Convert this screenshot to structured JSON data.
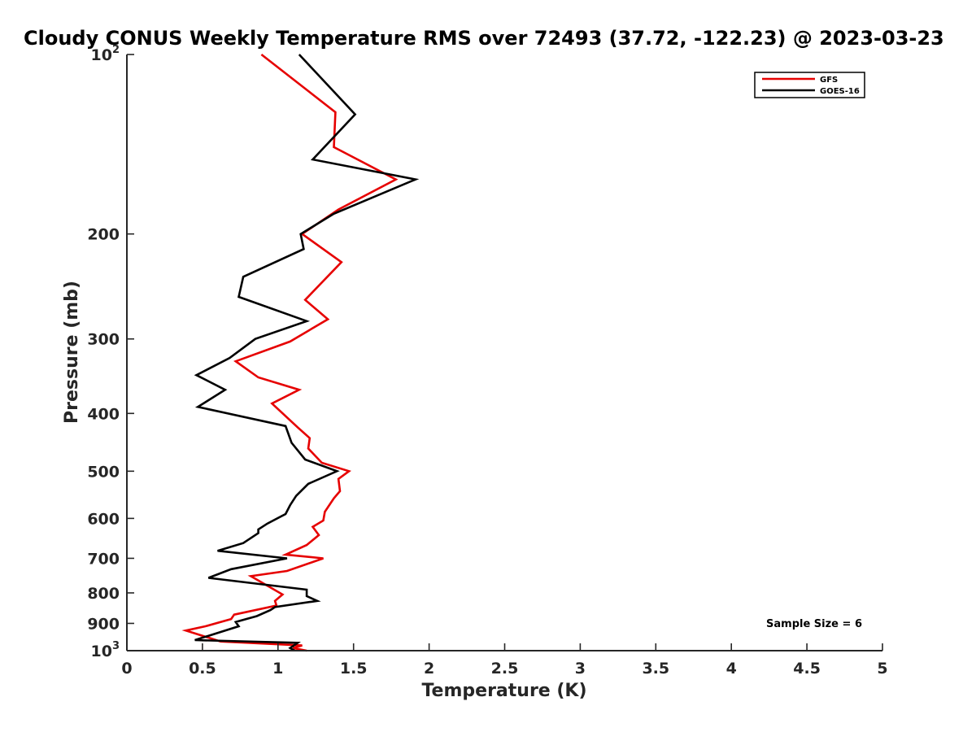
{
  "chart_data": {
    "type": "line",
    "title": "Cloudy CONUS Weekly Temperature RMS over 72493 (37.72, -122.23) @ 2023-03-23",
    "xlabel": "Temperature (K)",
    "ylabel": "Pressure (mb)",
    "xlim": [
      0,
      5
    ],
    "ylim": [
      100,
      1000
    ],
    "y_scale": "log",
    "y_reversed": true,
    "grid": false,
    "legend_position": "top-right",
    "x_ticks": [
      0,
      0.5,
      1,
      1.5,
      2,
      2.5,
      3,
      3.5,
      4,
      4.5,
      5
    ],
    "x_tick_labels": [
      "0",
      "0.5",
      "1",
      "1.5",
      "2",
      "2.5",
      "3",
      "3.5",
      "4",
      "4.5",
      "5"
    ],
    "y_ticks": [
      100,
      200,
      300,
      400,
      500,
      600,
      700,
      800,
      900,
      1000
    ],
    "y_tick_labels": [
      {
        "base": "10",
        "exp": "2"
      },
      {
        "base": "200",
        "exp": ""
      },
      {
        "base": "300",
        "exp": ""
      },
      {
        "base": "400",
        "exp": ""
      },
      {
        "base": "500",
        "exp": ""
      },
      {
        "base": "600",
        "exp": ""
      },
      {
        "base": "700",
        "exp": ""
      },
      {
        "base": "800",
        "exp": ""
      },
      {
        "base": "900",
        "exp": ""
      },
      {
        "base": "10",
        "exp": "3"
      }
    ],
    "series": [
      {
        "name": "GFS",
        "color": "#e60000",
        "points": [
          [
            0.89,
            100
          ],
          [
            1.38,
            125
          ],
          [
            1.37,
            143
          ],
          [
            1.78,
            162
          ],
          [
            1.4,
            182
          ],
          [
            1.16,
            200
          ],
          [
            1.42,
            223
          ],
          [
            1.18,
            258
          ],
          [
            1.33,
            278
          ],
          [
            1.08,
            303
          ],
          [
            0.72,
            327
          ],
          [
            0.87,
            348
          ],
          [
            1.14,
            365
          ],
          [
            0.96,
            385
          ],
          [
            1.13,
            422
          ],
          [
            1.21,
            440
          ],
          [
            1.2,
            458
          ],
          [
            1.29,
            484
          ],
          [
            1.47,
            500
          ],
          [
            1.4,
            515
          ],
          [
            1.41,
            540
          ],
          [
            1.37,
            555
          ],
          [
            1.31,
            585
          ],
          [
            1.3,
            605
          ],
          [
            1.23,
            620
          ],
          [
            1.27,
            640
          ],
          [
            1.19,
            665
          ],
          [
            1.05,
            690
          ],
          [
            1.3,
            700
          ],
          [
            1.06,
            735
          ],
          [
            0.82,
            750
          ],
          [
            1.03,
            805
          ],
          [
            0.98,
            825
          ],
          [
            0.99,
            840
          ],
          [
            0.71,
            870
          ],
          [
            0.69,
            885
          ],
          [
            0.52,
            910
          ],
          [
            0.39,
            925
          ],
          [
            0.62,
            965
          ],
          [
            1.16,
            980
          ],
          [
            1.1,
            990
          ],
          [
            1.19,
            1000
          ]
        ]
      },
      {
        "name": "GOES-16",
        "color": "#000000",
        "points": [
          [
            1.14,
            100
          ],
          [
            1.51,
            126
          ],
          [
            1.23,
            150
          ],
          [
            1.91,
            162
          ],
          [
            1.37,
            185
          ],
          [
            1.15,
            200
          ],
          [
            1.17,
            212
          ],
          [
            0.77,
            236
          ],
          [
            0.74,
            255
          ],
          [
            1.19,
            280
          ],
          [
            0.85,
            300
          ],
          [
            0.68,
            323
          ],
          [
            0.46,
            345
          ],
          [
            0.65,
            365
          ],
          [
            0.47,
            390
          ],
          [
            1.05,
            420
          ],
          [
            1.09,
            448
          ],
          [
            1.18,
            478
          ],
          [
            1.39,
            500
          ],
          [
            1.2,
            525
          ],
          [
            1.12,
            550
          ],
          [
            1.08,
            570
          ],
          [
            1.05,
            590
          ],
          [
            0.93,
            612
          ],
          [
            0.87,
            626
          ],
          [
            0.87,
            635
          ],
          [
            0.77,
            660
          ],
          [
            0.6,
            680
          ],
          [
            1.06,
            700
          ],
          [
            0.69,
            730
          ],
          [
            0.54,
            755
          ],
          [
            1.19,
            790
          ],
          [
            1.19,
            810
          ],
          [
            1.26,
            825
          ],
          [
            0.98,
            845
          ],
          [
            0.95,
            855
          ],
          [
            0.86,
            875
          ],
          [
            0.72,
            895
          ],
          [
            0.74,
            910
          ],
          [
            0.45,
            960
          ],
          [
            1.13,
            970
          ],
          [
            1.08,
            990
          ],
          [
            1.11,
            1000
          ]
        ]
      }
    ],
    "annotation": "Sample Size = 6"
  }
}
